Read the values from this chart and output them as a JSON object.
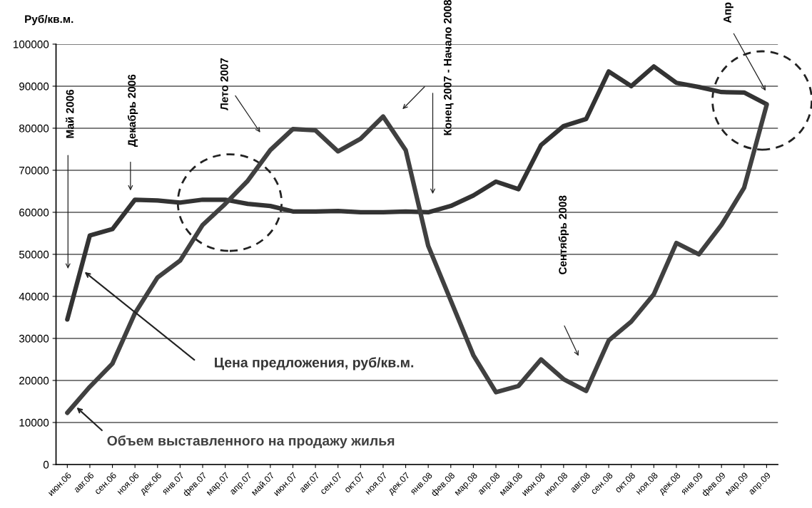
{
  "chart_data": {
    "type": "line",
    "ylabel": "Руб/кв.м.",
    "categories": [
      "июн.06",
      "авг.06",
      "сен.06",
      "ноя.06",
      "дек.06",
      "янв.07",
      "фев.07",
      "мар.07",
      "апр.07",
      "май.07",
      "июн.07",
      "авг.07",
      "сен.07",
      "окт.07",
      "ноя.07",
      "дек.07",
      "янв.08",
      "фев.08",
      "мар.08",
      "апр.08",
      "май.08",
      "июн.08",
      "июл.08",
      "авг.08",
      "сен.08",
      "окт.08",
      "ноя.08",
      "дек.08",
      "янв.09",
      "фев.09",
      "мар.09",
      "апр.09"
    ],
    "series": [
      {
        "name": "Цена предложения, руб/кв.м.",
        "color": "#333333",
        "values": [
          34500,
          54500,
          56000,
          63000,
          62800,
          62300,
          63000,
          63000,
          62000,
          61500,
          60200,
          60200,
          60300,
          60000,
          60000,
          60200,
          60000,
          61500,
          64000,
          67300,
          65500,
          76000,
          80500,
          82200,
          93500,
          90000,
          94700,
          90800,
          89800,
          88600,
          88500,
          85700
        ]
      },
      {
        "name": "Объем выставленного на продажу жилья",
        "color": "#404040",
        "values": [
          12300,
          18500,
          24000,
          36000,
          44500,
          48500,
          57000,
          62000,
          67500,
          74800,
          79800,
          79500,
          74500,
          77500,
          82800,
          74800,
          52000,
          39000,
          26000,
          17200,
          18700,
          25000,
          20300,
          17500,
          29500,
          34000,
          40500,
          52700,
          50000,
          57000,
          65800,
          85500
        ]
      }
    ],
    "ylim": [
      0,
      100000
    ],
    "yticks": [
      0,
      10000,
      20000,
      30000,
      40000,
      50000,
      60000,
      70000,
      80000,
      90000,
      100000
    ],
    "grid": "y",
    "legend": false,
    "marker": "none",
    "line_style": "solid",
    "annotations": [
      "Май 2006",
      "Декабрь 2006",
      "Лето 2007",
      "Конец 2007 - Начало 2008",
      "Апр",
      "Сентябрь 2008"
    ]
  }
}
